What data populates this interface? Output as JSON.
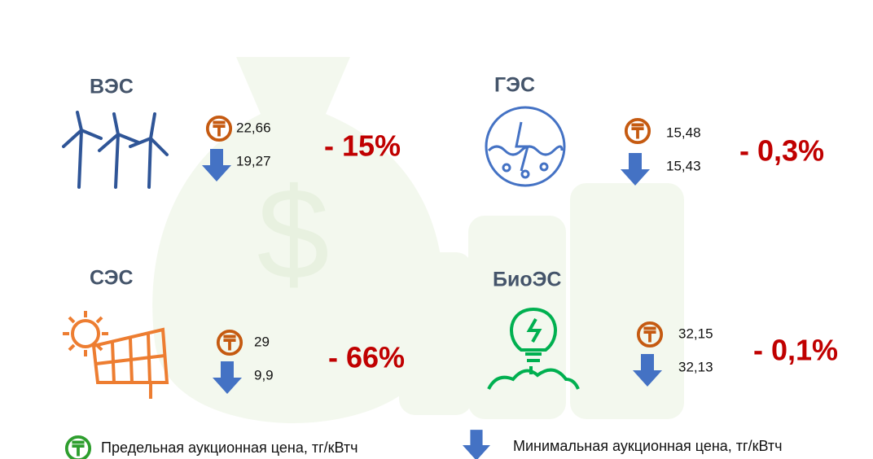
{
  "panels": [
    {
      "name": "ВЭС",
      "max_price": "22,66",
      "min_price": "19,27",
      "change": "- 15%"
    },
    {
      "name": "ГЭС",
      "max_price": "15,48",
      "min_price": "15,43",
      "change": "- 0,3%"
    },
    {
      "name": "СЭС",
      "max_price": "29",
      "min_price": "9,9",
      "change": "- 66%"
    },
    {
      "name": "БиоЭС",
      "max_price": "32,15",
      "min_price": "32,13",
      "change": "- 0,1%"
    }
  ],
  "legend": {
    "max_label": "Предельная аукционная цена, тг/кВтч",
    "min_label": "Минимальная аукционная цена, тг/кВтч"
  }
}
